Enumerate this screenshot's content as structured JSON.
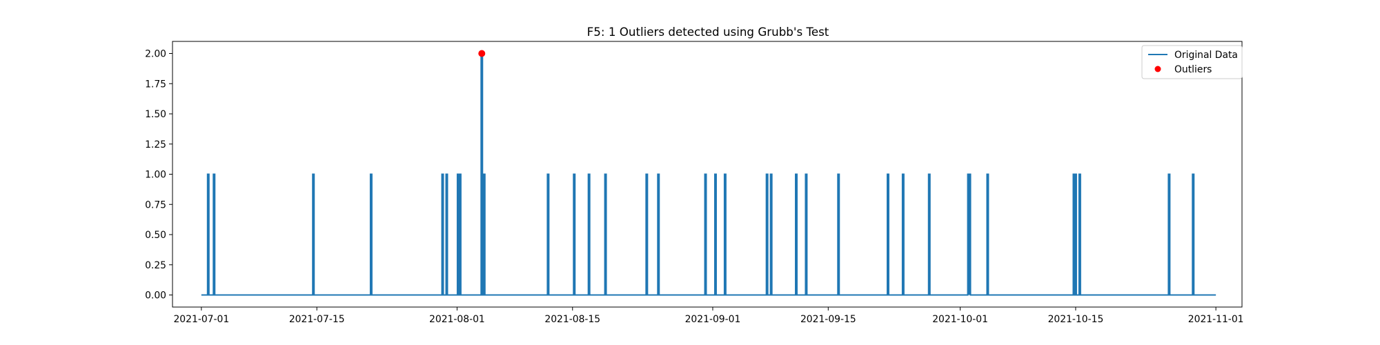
{
  "chart_data": {
    "type": "line",
    "title": "F5: 1 Outliers detected using Grubb's Test",
    "xlabel": "",
    "ylabel": "",
    "x_axis": {
      "scale": "date",
      "range": [
        "2021-06-27T12:00",
        "2021-11-04T04:00"
      ],
      "ticks": [
        "2021-07-01",
        "2021-07-15",
        "2021-08-01",
        "2021-08-15",
        "2021-09-01",
        "2021-09-15",
        "2021-10-01",
        "2021-10-15",
        "2021-11-01"
      ]
    },
    "y_axis": {
      "range": [
        -0.1,
        2.1
      ],
      "ticks": [
        0.0,
        0.25,
        0.5,
        0.75,
        1.0,
        1.25,
        1.5,
        1.75,
        2.0
      ],
      "tick_labels": [
        "0.00",
        "0.25",
        "0.50",
        "0.75",
        "1.00",
        "1.25",
        "1.50",
        "1.75",
        "2.00"
      ]
    },
    "grid": false,
    "legend": {
      "position": "top-right",
      "entries": [
        "Original Data",
        "Outliers"
      ]
    },
    "series": [
      {
        "name": "Original Data",
        "color": "#1f77b4",
        "baseline": 0,
        "start": "2021-07-01T00:00",
        "end": "2021-11-01T00:00",
        "spikes": [
          {
            "date": "2021-07-01T20:00",
            "value": 1
          },
          {
            "date": "2021-07-02T13:00",
            "value": 1
          },
          {
            "date": "2021-07-14T14:00",
            "value": 1
          },
          {
            "date": "2021-07-21T14:00",
            "value": 1
          },
          {
            "date": "2021-07-30T06:00",
            "value": 1
          },
          {
            "date": "2021-07-30T18:00",
            "value": 1
          },
          {
            "date": "2021-08-01T03:00",
            "value": 1
          },
          {
            "date": "2021-08-01T09:00",
            "value": 1
          },
          {
            "date": "2021-08-04T00:00",
            "value": 2
          },
          {
            "date": "2021-08-04T07:00",
            "value": 1
          },
          {
            "date": "2021-08-12T01:00",
            "value": 1
          },
          {
            "date": "2021-08-15T05:00",
            "value": 1
          },
          {
            "date": "2021-08-17T00:00",
            "value": 1
          },
          {
            "date": "2021-08-19T00:00",
            "value": 1
          },
          {
            "date": "2021-08-24T00:00",
            "value": 1
          },
          {
            "date": "2021-08-25T10:00",
            "value": 1
          },
          {
            "date": "2021-08-31T03:00",
            "value": 1
          },
          {
            "date": "2021-09-01T08:00",
            "value": 1
          },
          {
            "date": "2021-09-02T12:00",
            "value": 1
          },
          {
            "date": "2021-09-07T14:00",
            "value": 1
          },
          {
            "date": "2021-09-08T02:00",
            "value": 1
          },
          {
            "date": "2021-09-11T03:00",
            "value": 1
          },
          {
            "date": "2021-09-12T08:00",
            "value": 1
          },
          {
            "date": "2021-09-16T06:00",
            "value": 1
          },
          {
            "date": "2021-09-22T06:00",
            "value": 1
          },
          {
            "date": "2021-09-24T02:00",
            "value": 1
          },
          {
            "date": "2021-09-27T06:00",
            "value": 1
          },
          {
            "date": "2021-10-02T00:00",
            "value": 1
          },
          {
            "date": "2021-10-02T04:00",
            "value": 1
          },
          {
            "date": "2021-10-04T08:00",
            "value": 1
          },
          {
            "date": "2021-10-14T19:00",
            "value": 1
          },
          {
            "date": "2021-10-15T00:00",
            "value": 1
          },
          {
            "date": "2021-10-15T12:00",
            "value": 1
          },
          {
            "date": "2021-10-26T08:00",
            "value": 1
          },
          {
            "date": "2021-10-29T06:00",
            "value": 1
          }
        ]
      },
      {
        "name": "Outliers",
        "color": "#ff0000",
        "points": [
          {
            "date": "2021-08-04T00:00",
            "value": 2
          }
        ]
      }
    ]
  }
}
